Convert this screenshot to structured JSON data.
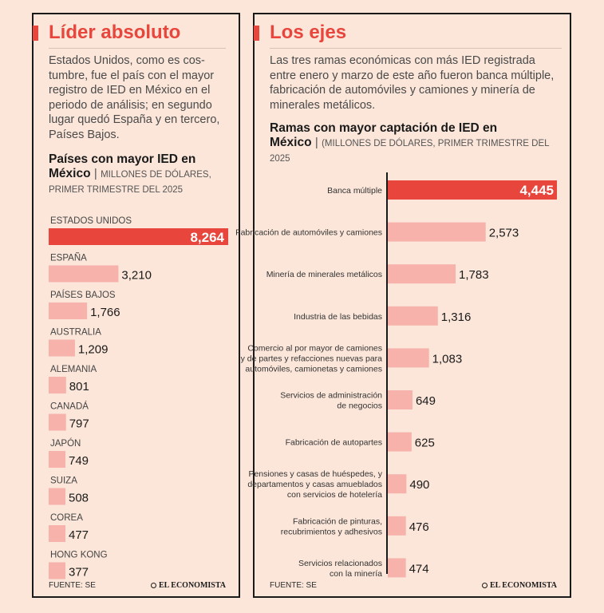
{
  "left_panel": {
    "title": "Líder absoluto",
    "intro_lines": [
      "Estados Unidos, como es cos-",
      "tumbre, fue el país con el mayor",
      "registro de IED en México en el",
      "periodo de análisis; en segundo",
      "lugar quedó España y en tercero,",
      "Países Bajos."
    ],
    "chart_title_l1": "Países con mayor IED en",
    "chart_title_l2": "México",
    "chart_sub_l1": "MILLONES DE DÓLARES,",
    "chart_sub_l2": "PRIMER TRIMESTRE DEL 2025",
    "footer": "FUENTE: SE",
    "logo": "EL ECONOMISTA"
  },
  "right_panel": {
    "title": "Los ejes",
    "intro_lines": [
      "Las tres ramas económicas con más IED registrada",
      "entre enero y marzo de este año fueron banca múltiple,",
      "fabricación de automóviles y camiones y minería de",
      "minerales metálicos."
    ],
    "chart_title_l1": "Ramas con mayor captación de IED en",
    "chart_title_l2": "México",
    "chart_sub": "(MILLONES DE DÓLARES, PRIMER TRIMESTRE DEL 2025",
    "footer": "FUENTE: SE",
    "logo": "EL ECONOMISTA"
  },
  "colors": {
    "accent": "#e8453c",
    "bar": "#f6b2ab",
    "highlight": "#e8453c",
    "background": "#fbe6d9"
  },
  "chart_data": [
    {
      "type": "bar",
      "orientation": "horizontal",
      "title": "Países con mayor IED en México",
      "subtitle": "MILLONES DE DÓLARES, PRIMER TRIMESTRE DEL 2025",
      "categories": [
        "ESTADOS UNIDOS",
        "ESPAÑA",
        "PAÍSES BAJOS",
        "AUSTRALIA",
        "ALEMANIA",
        "CANADÁ",
        "JAPÓN",
        "SUIZA",
        "COREA",
        "HONG KONG"
      ],
      "values": [
        8264,
        3210,
        1766,
        1209,
        801,
        797,
        749,
        508,
        477,
        377
      ],
      "value_labels": [
        "8,264",
        "3,210",
        "1,766",
        "1,209",
        "801",
        "797",
        "749",
        "508",
        "477",
        "377"
      ],
      "highlight_index": 0
    },
    {
      "type": "bar",
      "orientation": "horizontal",
      "title": "Ramas con mayor captación de IED en México",
      "subtitle": "(MILLONES DE DÓLARES, PRIMER TRIMESTRE DEL 2025",
      "categories": [
        [
          "Banca múltiple"
        ],
        [
          "Fabricación de automóviles y camiones"
        ],
        [
          "Minería de minerales metálicos"
        ],
        [
          "Industria de las bebidas"
        ],
        [
          "Comercio al por mayor de camiones",
          "y de partes y refacciones nuevas para",
          "automóviles, camionetas y camiones"
        ],
        [
          "Servicios de administración",
          "de negocios"
        ],
        [
          "Fabricación de autopartes"
        ],
        [
          "Pensiones y casas de huéspedes, y",
          "departamentos y casas amueblados",
          "con servicios de hotelería"
        ],
        [
          "Fabricación de pinturas,",
          "recubrimientos y adhesivos"
        ],
        [
          "Servicios relacionados",
          "con la minería"
        ]
      ],
      "values": [
        4445,
        2573,
        1783,
        1316,
        1083,
        649,
        625,
        490,
        476,
        474
      ],
      "value_labels": [
        "4,445",
        "2,573",
        "1,783",
        "1,316",
        "1,083",
        "649",
        "625",
        "490",
        "476",
        "474"
      ],
      "highlight_index": 0
    }
  ]
}
